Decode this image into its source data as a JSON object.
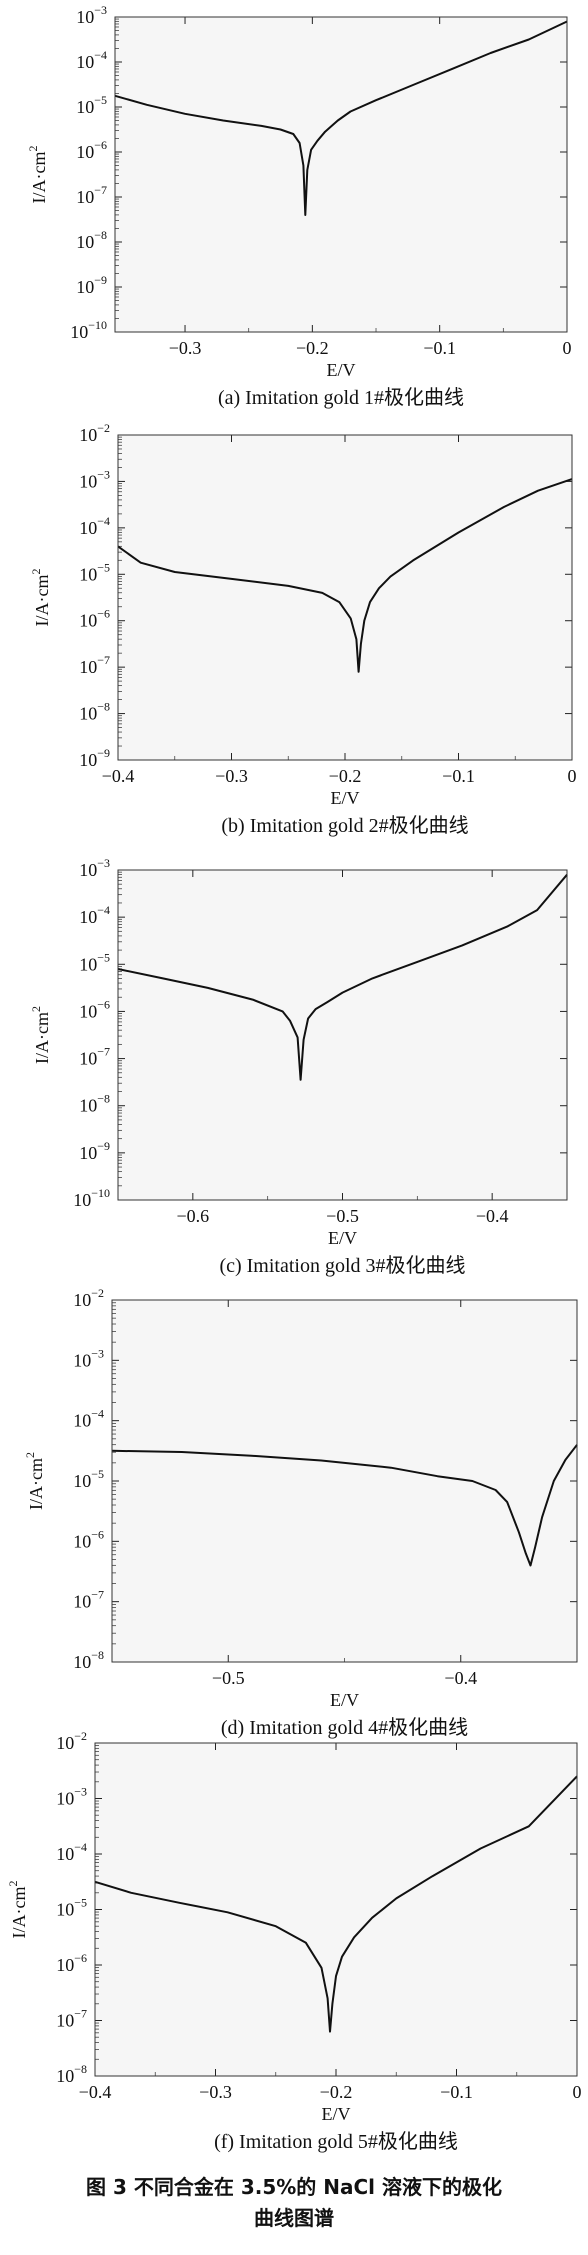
{
  "figure_caption": {
    "line1": "图 3   不同合金在 3.5%的 NaCl 溶液下的极化",
    "line2": "曲线图谱"
  },
  "chart_data": [
    {
      "type": "line",
      "caption": "(a) Imitation gold 1#极化曲线",
      "xlabel": "E/V",
      "ylabel": "I/A·cm",
      "ylabel_sup": "2",
      "xlim": [
        -0.355,
        0.0
      ],
      "ylim_exp": [
        -10,
        -3
      ],
      "x_ticks": [
        -0.3,
        -0.2,
        -0.1,
        0
      ],
      "x_tick_labels": [
        "−0.3",
        "−0.2",
        "−0.1",
        "0"
      ],
      "y_ticks_exp": [
        -10,
        -9,
        -8,
        -7,
        -6,
        -5,
        -4,
        -3
      ],
      "ylog": true,
      "series": [
        {
          "x": [
            -0.355,
            -0.33,
            -0.3,
            -0.27,
            -0.24,
            -0.225,
            -0.215,
            -0.21,
            -0.207,
            -0.2055,
            -0.204,
            -0.201,
            -0.196,
            -0.19,
            -0.18,
            -0.17,
            -0.15,
            -0.12,
            -0.09,
            -0.06,
            -0.03,
            0.0
          ],
          "y": [
            -4.75,
            -4.95,
            -5.15,
            -5.3,
            -5.42,
            -5.5,
            -5.6,
            -5.8,
            -6.3,
            -7.4,
            -6.4,
            -5.95,
            -5.75,
            -5.55,
            -5.3,
            -5.1,
            -4.85,
            -4.5,
            -4.15,
            -3.8,
            -3.5,
            -3.1
          ]
        }
      ]
    },
    {
      "type": "line",
      "caption": "(b) Imitation gold 2#极化曲线",
      "xlabel": "E/V",
      "ylabel": "I/A·cm",
      "ylabel_sup": "2",
      "xlim": [
        -0.4,
        0.0
      ],
      "ylim_exp": [
        -9,
        -2
      ],
      "x_ticks": [
        -0.4,
        -0.3,
        -0.2,
        -0.1,
        0
      ],
      "x_tick_labels": [
        "−0.4",
        "−0.3",
        "−0.2",
        "−0.1",
        "0"
      ],
      "y_ticks_exp": [
        -9,
        -8,
        -7,
        -6,
        -5,
        -4,
        -3,
        -2
      ],
      "ylog": true,
      "series": [
        {
          "x": [
            -0.4,
            -0.38,
            -0.35,
            -0.3,
            -0.25,
            -0.22,
            -0.205,
            -0.195,
            -0.19,
            -0.188,
            -0.186,
            -0.183,
            -0.178,
            -0.17,
            -0.16,
            -0.14,
            -0.1,
            -0.06,
            -0.03,
            0.0
          ],
          "y": [
            -4.4,
            -4.75,
            -4.95,
            -5.1,
            -5.25,
            -5.4,
            -5.6,
            -5.95,
            -6.4,
            -7.1,
            -6.5,
            -6.0,
            -5.6,
            -5.3,
            -5.05,
            -4.7,
            -4.1,
            -3.55,
            -3.2,
            -2.95
          ]
        }
      ]
    },
    {
      "type": "line",
      "caption": "(c) Imitation gold 3#极化曲线",
      "xlabel": "E/V",
      "ylabel": "I/A·cm",
      "ylabel_sup": "2",
      "xlim": [
        -0.65,
        -0.35
      ],
      "ylim_exp": [
        -10,
        -3
      ],
      "x_ticks": [
        -0.6,
        -0.5,
        -0.4
      ],
      "x_tick_labels": [
        "−0.6",
        "−0.5",
        "−0.4"
      ],
      "y_ticks_exp": [
        -10,
        -9,
        -8,
        -7,
        -6,
        -5,
        -4,
        -3
      ],
      "ylog": true,
      "series": [
        {
          "x": [
            -0.65,
            -0.62,
            -0.59,
            -0.56,
            -0.54,
            -0.535,
            -0.53,
            -0.528,
            -0.526,
            -0.523,
            -0.518,
            -0.51,
            -0.5,
            -0.48,
            -0.45,
            -0.42,
            -0.39,
            -0.37,
            -0.35
          ],
          "y": [
            -5.1,
            -5.3,
            -5.5,
            -5.75,
            -6.0,
            -6.2,
            -6.55,
            -7.45,
            -6.6,
            -6.15,
            -5.95,
            -5.8,
            -5.6,
            -5.3,
            -4.95,
            -4.6,
            -4.2,
            -3.85,
            -3.1
          ]
        }
      ]
    },
    {
      "type": "line",
      "caption": "(d) Imitation gold 4#极化曲线",
      "xlabel": "E/V",
      "ylabel": "I/A·cm",
      "ylabel_sup": "2",
      "xlim": [
        -0.55,
        -0.35
      ],
      "ylim_exp": [
        -8,
        -2
      ],
      "x_ticks": [
        -0.5,
        -0.4
      ],
      "x_tick_labels": [
        "−0.5",
        "−0.4"
      ],
      "y_ticks_exp": [
        -8,
        -7,
        -6,
        -5,
        -4,
        -3,
        -2
      ],
      "ylog": true,
      "series": [
        {
          "x": [
            -0.55,
            -0.52,
            -0.49,
            -0.46,
            -0.43,
            -0.41,
            -0.395,
            -0.385,
            -0.38,
            -0.375,
            -0.372,
            -0.37,
            -0.368,
            -0.365,
            -0.36,
            -0.355,
            -0.35
          ],
          "y": [
            -4.5,
            -4.52,
            -4.58,
            -4.66,
            -4.78,
            -4.92,
            -5.0,
            -5.15,
            -5.35,
            -5.85,
            -6.2,
            -6.4,
            -6.1,
            -5.6,
            -5.0,
            -4.65,
            -4.4
          ]
        }
      ]
    },
    {
      "type": "line",
      "caption": "(f) Imitation gold 5#极化曲线",
      "xlabel": "E/V",
      "ylabel": "I/A·cm",
      "ylabel_sup": "2",
      "xlim": [
        -0.4,
        0.0
      ],
      "ylim_exp": [
        -8,
        -2
      ],
      "x_ticks": [
        -0.4,
        -0.3,
        -0.2,
        -0.1,
        0
      ],
      "x_tick_labels": [
        "−0.4",
        "−0.3",
        "−0.2",
        "−0.1",
        "0"
      ],
      "y_ticks_exp": [
        -8,
        -7,
        -6,
        -5,
        -4,
        -3,
        -2
      ],
      "ylog": true,
      "series": [
        {
          "x": [
            -0.4,
            -0.37,
            -0.33,
            -0.29,
            -0.25,
            -0.225,
            -0.212,
            -0.207,
            -0.205,
            -0.203,
            -0.2,
            -0.195,
            -0.185,
            -0.17,
            -0.15,
            -0.12,
            -0.08,
            -0.04,
            0.0
          ],
          "y": [
            -4.5,
            -4.7,
            -4.88,
            -5.05,
            -5.3,
            -5.6,
            -6.05,
            -6.6,
            -7.2,
            -6.7,
            -6.2,
            -5.85,
            -5.5,
            -5.15,
            -4.8,
            -4.4,
            -3.9,
            -3.5,
            -2.6
          ]
        }
      ]
    }
  ]
}
